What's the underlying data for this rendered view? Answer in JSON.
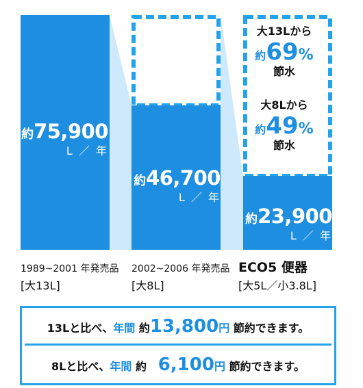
{
  "chart_data": {
    "type": "bar",
    "unit": "L／年",
    "categories": [
      "1989~2001 年発売品 [大13L]",
      "2002~2006 年発売品 [大8L]",
      "ECO5 便器 [大5L／小3.8L]"
    ],
    "values": [
      75900,
      46700,
      23900
    ],
    "ylim": [
      0,
      75900
    ],
    "colors": {
      "bar": "#1e8fe0",
      "connector": "#cde9fb",
      "outline": "#22a3ea"
    }
  },
  "bars": [
    {
      "prefix": "約",
      "value": "75,900",
      "unit": "L ／ 年",
      "period": "1989~2001 年発売品",
      "type": "[大13L]"
    },
    {
      "prefix": "約",
      "value": "46,700",
      "unit": "L ／ 年",
      "period": "2002~2006 年発売品",
      "type": "[大8L]"
    },
    {
      "prefix": "約",
      "value": "23,900",
      "unit": "L ／ 年",
      "name": "ECO5 便器",
      "type": "[大5L／小3.8L]"
    }
  ],
  "savings": [
    {
      "from": "大13Lから",
      "prefix": "約",
      "pct": "69",
      "sign": "%",
      "word": "節水"
    },
    {
      "from": "大8Lから",
      "prefix": "約",
      "pct": "49",
      "sign": "%",
      "word": "節水"
    }
  ],
  "summary": [
    {
      "compare": "13Lと比べ、",
      "label": "年間",
      "prefix": "約",
      "amount": "13,800",
      "currency": "円",
      "tail": "節約できます。"
    },
    {
      "compare": "8Lと比べ、",
      "label": "年間",
      "prefix": "約",
      "amount": "6,100",
      "currency": "円",
      "tail": "節約できます。"
    }
  ]
}
